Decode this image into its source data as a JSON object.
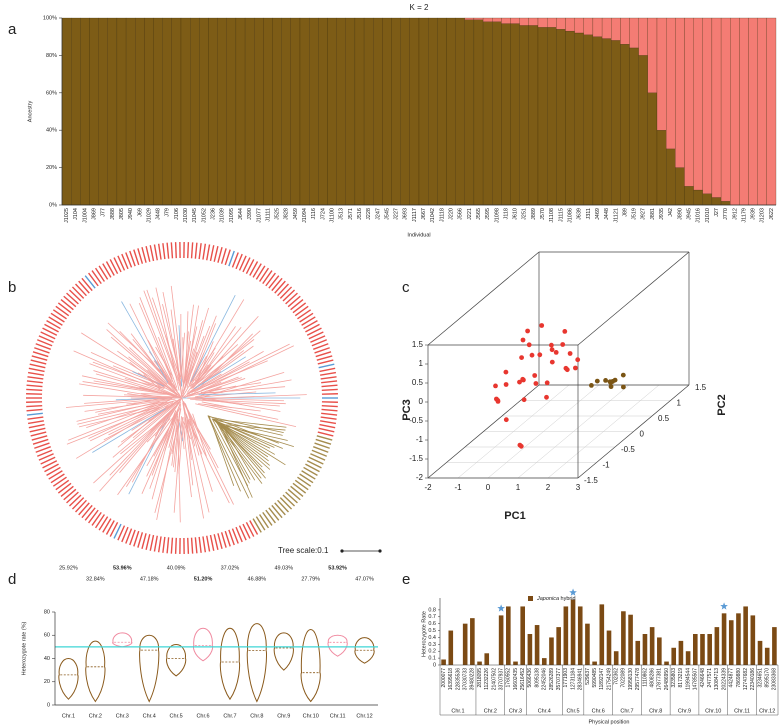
{
  "chart_data": [
    {
      "type": "stacked_bar",
      "panel": "a",
      "title": "K = 2",
      "ylabel": "Ancestry",
      "xlabel": "Individual",
      "categories": [
        "J1025",
        "J104",
        "J1004",
        "J869",
        "J77",
        "J888",
        "J805",
        "J940",
        "J69",
        "J1029",
        "J448",
        "J79",
        "J106",
        "J1030",
        "J1045",
        "J1052",
        "J236",
        "J1039",
        "J1095",
        "J644",
        "J390",
        "J1077",
        "J1111",
        "J525",
        "J828",
        "J459",
        "J1094",
        "J116",
        "J724",
        "J1100",
        "J513",
        "J571",
        "J516",
        "J228",
        "J247",
        "J545",
        "J227",
        "J693",
        "J1117",
        "J667",
        "J1042",
        "J1118",
        "J220",
        "J566",
        "J221",
        "J565",
        "J595",
        "J1098",
        "J118",
        "J610",
        "J251",
        "J889",
        "J570",
        "J1108",
        "J1115",
        "J1086",
        "J639",
        "J311",
        "J469",
        "J448",
        "J1121",
        "J89",
        "J519",
        "J927",
        "J881",
        "J935",
        "J42",
        "J890",
        "J945",
        "J1016",
        "J1010",
        "J27",
        "J770",
        "J912",
        "J1179",
        "J939",
        "J1203",
        "J622"
      ],
      "series": [
        {
          "color": "#7d5c16",
          "values": [
            100,
            100,
            100,
            100,
            100,
            100,
            100,
            100,
            100,
            100,
            100,
            100,
            100,
            100,
            100,
            100,
            100,
            100,
            100,
            100,
            100,
            100,
            100,
            100,
            100,
            100,
            100,
            100,
            100,
            100,
            100,
            100,
            100,
            100,
            100,
            100,
            100,
            100,
            100,
            100,
            100,
            100,
            100,
            100,
            99,
            99,
            98,
            98,
            97,
            97,
            96,
            96,
            95,
            95,
            94,
            93,
            92,
            91,
            90,
            89,
            88,
            86,
            84,
            80,
            60,
            40,
            30,
            20,
            10,
            8,
            6,
            4,
            2,
            0,
            0,
            0,
            0,
            0
          ]
        },
        {
          "color": "#f47c74",
          "values": [
            0,
            0,
            0,
            0,
            0,
            0,
            0,
            0,
            0,
            0,
            0,
            0,
            0,
            0,
            0,
            0,
            0,
            0,
            0,
            0,
            0,
            0,
            0,
            0,
            0,
            0,
            0,
            0,
            0,
            0,
            0,
            0,
            0,
            0,
            0,
            0,
            0,
            0,
            0,
            0,
            0,
            0,
            0,
            0,
            1,
            1,
            2,
            2,
            3,
            3,
            4,
            4,
            5,
            5,
            6,
            7,
            8,
            9,
            10,
            11,
            12,
            14,
            16,
            20,
            40,
            60,
            70,
            80,
            90,
            92,
            94,
            96,
            98,
            100,
            100,
            100,
            100,
            100
          ]
        }
      ],
      "ylim": [
        0,
        100
      ],
      "yticks": [
        {
          "value": 0,
          "label": "0%"
        },
        {
          "value": 20,
          "label": "20%"
        },
        {
          "value": 40,
          "label": "40%"
        },
        {
          "value": 60,
          "label": "60%"
        },
        {
          "value": 80,
          "label": "80%"
        },
        {
          "value": 100,
          "label": "100%"
        }
      ]
    },
    {
      "type": "tree",
      "panel": "b",
      "scale_label": "Tree scale:0.1"
    },
    {
      "type": "scatter3d",
      "panel": "c",
      "xlabel": "PC1",
      "ylabel": "PC2",
      "zlabel": "PC3",
      "xlim": [
        -2,
        3
      ],
      "xticks": [
        -2,
        -1,
        0,
        1,
        2,
        3
      ],
      "ylim": [
        -1.5,
        1.5
      ],
      "yticks": [
        -1.5,
        -1,
        -0.5,
        0,
        0.5,
        1,
        1.5
      ],
      "zlim": [
        -2,
        1.5
      ],
      "zticks": [
        -2,
        -1.5,
        -1,
        -0.5,
        0,
        0.5,
        1,
        1.5
      ],
      "series": [
        {
          "color": "#e8362f",
          "x": [
            -1.5,
            -1.2,
            -1.0,
            -0.8,
            -0.6,
            -0.4,
            -0.2,
            0.0,
            0.2,
            0.4,
            -1.4,
            -1.1,
            -0.9,
            -0.7,
            -0.5,
            -0.3,
            -0.1,
            0.1,
            0.3,
            -1.3,
            -1.0,
            -0.6,
            -0.2,
            0.2,
            0.5,
            -0.8,
            -0.4,
            0.0,
            -1.6,
            -0.9,
            -0.5,
            -0.1,
            0.3,
            -0.17,
            0.0
          ],
          "y": [
            0.2,
            -0.3,
            0.5,
            0.0,
            0.7,
            -0.2,
            0.4,
            0.1,
            -0.4,
            0.6,
            -0.1,
            0.3,
            -0.5,
            0.8,
            0.2,
            -0.3,
            0.6,
            0.0,
            0.4,
            0.5,
            -0.2,
            0.1,
            -0.4,
            0.7,
            0.2,
            0.6,
            0.9,
            -0.1,
            0.0,
            0.3,
            -0.6,
            0.8,
            0.1,
            -0.5,
            -0.6
          ],
          "z": [
            -0.6,
            -0.9,
            -0.4,
            -0.7,
            -0.3,
            -1.0,
            -0.5,
            -0.8,
            -0.2,
            -0.6,
            -1.1,
            -0.3,
            -0.8,
            -0.5,
            -0.9,
            -0.4,
            -0.2,
            -1.1,
            -0.7,
            0.0,
            -0.6,
            0.2,
            -0.3,
            -0.9,
            -0.5,
            0.3,
            -0.1,
            0.1,
            -0.8,
            0.4,
            -1.2,
            -0.6,
            0.0,
            -1.95,
            -1.9
          ]
        },
        {
          "color": "#7a5414",
          "x": [
            1.3,
            1.5,
            1.7,
            1.4,
            1.6,
            1.8,
            1.35,
            1.55,
            1.75,
            1.45
          ],
          "y": [
            0.4,
            0.6,
            0.3,
            0.8,
            0.5,
            0.7,
            0.2,
            0.9,
            0.45,
            0.65
          ],
          "z": [
            -1.0,
            -1.2,
            -0.9,
            -1.3,
            -1.1,
            -1.4,
            -0.95,
            -1.25,
            -1.05,
            -1.35
          ]
        }
      ]
    },
    {
      "type": "violin",
      "panel": "d",
      "ylabel": "Heterozygote rate (%)",
      "categories": [
        "Chr.1",
        "Chr.2",
        "Chr.3",
        "Chr.4",
        "Chr.5",
        "Chr.6",
        "Chr.7",
        "Chr.8",
        "Chr.9",
        "Chr.10",
        "Chr.11",
        "Chr.12"
      ],
      "values": [
        25.92,
        32.84,
        53.96,
        47.18,
        40.09,
        51.2,
        37.02,
        46.88,
        49.03,
        27.79,
        53.92,
        47.07
      ],
      "value_labels": [
        "25.92%",
        "32.84%",
        "53.96%",
        "47.18%",
        "40.09%",
        "51.20%",
        "37.02%",
        "46.88%",
        "49.03%",
        "27.79%",
        "53.92%",
        "47.07%"
      ],
      "bold": [
        false,
        false,
        true,
        false,
        false,
        true,
        false,
        false,
        false,
        false,
        true,
        false
      ],
      "min": [
        5,
        3,
        50,
        3,
        25,
        38,
        5,
        3,
        30,
        3,
        42,
        36
      ],
      "max": [
        40,
        55,
        62,
        60,
        52,
        66,
        66,
        70,
        62,
        65,
        60,
        58
      ],
      "colors": [
        "#8a5a1c",
        "#8a5a1c",
        "#f08aa0",
        "#8a5a1c",
        "#8a5a1c",
        "#f08aa0",
        "#8a5a1c",
        "#8a5a1c",
        "#8a5a1c",
        "#8a5a1c",
        "#f08aa0",
        "#8a5a1c"
      ],
      "reference_line": 50,
      "reference_color": "#3fd6d6",
      "ylim": [
        0,
        80
      ],
      "yticks": [
        0,
        20,
        40,
        60,
        80
      ]
    },
    {
      "type": "bar",
      "panel": "e",
      "ylabel": "Heterozygote Rate",
      "xlabel": "Physical position",
      "color": "#7b4a14",
      "star_color": "#5b9bd5",
      "series": [
        {
          "name": "Japonica hybrid",
          "color": "#7b4a14"
        }
      ],
      "groups": [
        {
          "name": "Chr.1",
          "categories": [
            "2000077",
            "16395618",
            "22835536",
            "37030733",
            "39480228"
          ],
          "values": [
            0.08,
            0.5,
            0,
            0.6,
            0.68
          ],
          "starred": [
            false,
            false,
            false,
            false,
            false
          ]
        },
        {
          "name": "Chr.2",
          "categories": [
            "2818095",
            "11232226",
            "21407502",
            "33707937"
          ],
          "values": [
            0.05,
            0.17,
            0,
            0.72
          ],
          "starred": [
            false,
            false,
            false,
            true
          ]
        },
        {
          "name": "Chr.3",
          "categories": [
            "1760552",
            "16602435",
            "25616452"
          ],
          "values": [
            0.85,
            0.05,
            0.85
          ],
          "starred": [
            false,
            false,
            false
          ]
        },
        {
          "name": "Chr.4",
          "categories": [
            "5066436",
            "8095138",
            "22452046",
            "28526289",
            "35707377"
          ],
          "values": [
            0.45,
            0.58,
            0.1,
            0.4,
            0.55
          ],
          "starred": [
            false,
            false,
            false,
            false,
            false
          ]
        },
        {
          "name": "Chr.5",
          "categories": [
            "1771903",
            "12731184",
            "28346941"
          ],
          "values": [
            0.85,
            0.95,
            0.85
          ],
          "starred": [
            false,
            true,
            false
          ]
        },
        {
          "name": "Chr.6",
          "categories": [
            "529637",
            "5990485",
            "11892147",
            "21754249"
          ],
          "values": [
            0.6,
            0.05,
            0.88,
            0.5
          ],
          "starred": [
            false,
            false,
            false,
            false
          ]
        },
        {
          "name": "Chr.7",
          "categories": [
            "702362",
            "7022089",
            "19958130",
            "29577478"
          ],
          "values": [
            0.2,
            0.78,
            0.73,
            0.35
          ],
          "starred": [
            false,
            false,
            false,
            false
          ]
        },
        {
          "name": "Chr.8",
          "categories": [
            "1110862",
            "4808286",
            "17877381",
            "26486950"
          ],
          "values": [
            0.45,
            0.55,
            0.4,
            0.05
          ],
          "starred": [
            false,
            false,
            false,
            false
          ]
        },
        {
          "name": "Chr.9",
          "categories": [
            "3235803",
            "8173219",
            "11994544",
            "14785507"
          ],
          "values": [
            0.25,
            0.35,
            0.2,
            0.45
          ],
          "starred": [
            false,
            false,
            false,
            false
          ]
        },
        {
          "name": "Chr.10",
          "categories": [
            "4246648",
            "2477571",
            "13084713",
            "20224339"
          ],
          "values": [
            0.45,
            0.45,
            0.55,
            0.75
          ],
          "starred": [
            false,
            false,
            false,
            true
          ]
        },
        {
          "name": "Chr.11",
          "categories": [
            "4424877",
            "7869880",
            "12747682",
            "22340186"
          ],
          "values": [
            0.65,
            0.75,
            0.85,
            0.72
          ],
          "starred": [
            false,
            false,
            false,
            false
          ]
        },
        {
          "name": "Chr.12",
          "categories": [
            "3234651",
            "8595170",
            "23083368"
          ],
          "values": [
            0.35,
            0.25,
            0.55
          ],
          "starred": [
            false,
            false,
            false
          ]
        }
      ],
      "ylim": [
        0,
        0.9
      ],
      "yticks": [
        0,
        0.1,
        0.2,
        0.3,
        0.4,
        0.5,
        0.6,
        0.7,
        0.8
      ]
    }
  ]
}
